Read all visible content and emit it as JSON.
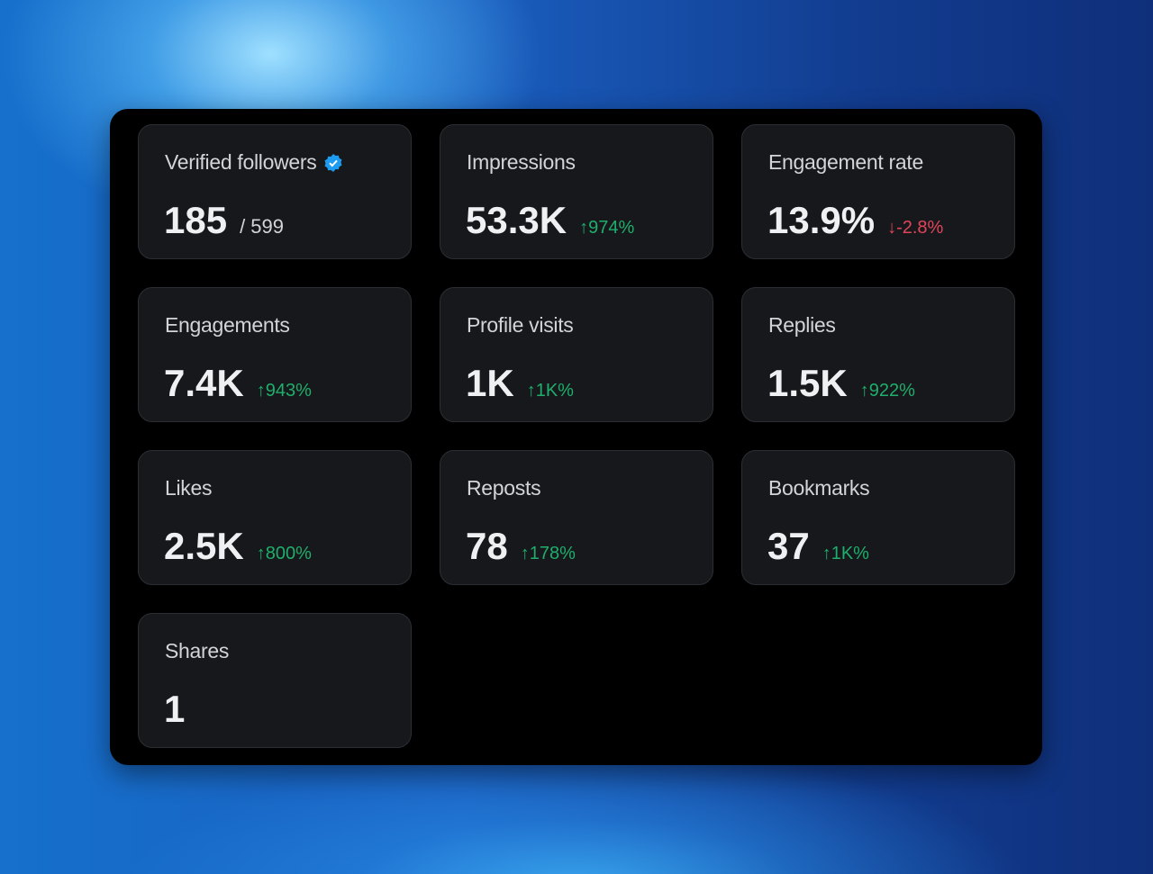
{
  "cards": [
    {
      "label": "Verified followers",
      "value": "185",
      "sub": "/ 599",
      "verified": true
    },
    {
      "label": "Impressions",
      "value": "53.3K",
      "delta": "974%",
      "direction": "up"
    },
    {
      "label": "Engagement rate",
      "value": "13.9%",
      "delta": "-2.8%",
      "direction": "down"
    },
    {
      "label": "Engagements",
      "value": "7.4K",
      "delta": "943%",
      "direction": "up"
    },
    {
      "label": "Profile visits",
      "value": "1K",
      "delta": "1K%",
      "direction": "up"
    },
    {
      "label": "Replies",
      "value": "1.5K",
      "delta": "922%",
      "direction": "up"
    },
    {
      "label": "Likes",
      "value": "2.5K",
      "delta": "800%",
      "direction": "up"
    },
    {
      "label": "Reposts",
      "value": "78",
      "delta": "178%",
      "direction": "up"
    },
    {
      "label": "Bookmarks",
      "value": "37",
      "delta": "1K%",
      "direction": "up"
    },
    {
      "label": "Shares",
      "value": "1"
    }
  ],
  "icons": {
    "verified": "verified-badge-icon",
    "up": "arrow-up-icon",
    "down": "arrow-down-icon"
  },
  "colors": {
    "up": "#1fae6b",
    "down": "#e0455a",
    "verified": "#1d9bf0"
  }
}
